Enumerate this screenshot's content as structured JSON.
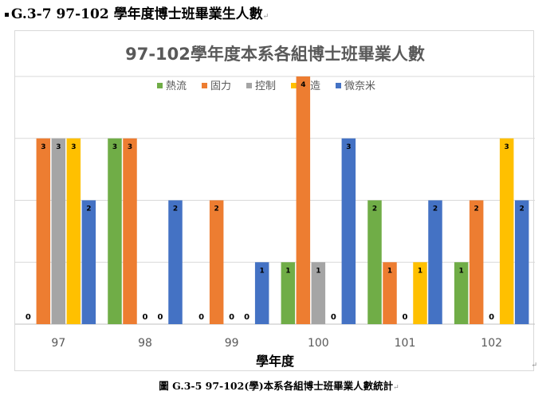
{
  "heading": {
    "text": "G.3-7  97-102 學年度博士班畢業生人數"
  },
  "caption": {
    "text": "圖 G.3-5  97-102(學)本系各組博士班畢業人數統計"
  },
  "para_mark": "↵",
  "chart_data": {
    "type": "bar",
    "title": "97-102學年度本系各組博士班畢業人數",
    "xlabel": "學年度",
    "ylabel": "",
    "ylim": [
      0,
      4
    ],
    "grid": true,
    "legend_position": "top",
    "categories": [
      "97",
      "98",
      "99",
      "100",
      "101",
      "102"
    ],
    "series": [
      {
        "name": "熱流",
        "color": "#70ad47",
        "values": [
          0,
          3,
          0,
          1,
          2,
          1
        ]
      },
      {
        "name": "固力",
        "color": "#ed7d31",
        "values": [
          3,
          3,
          2,
          4,
          1,
          2
        ]
      },
      {
        "name": "控制",
        "color": "#a5a5a5",
        "values": [
          3,
          0,
          0,
          1,
          0,
          0
        ]
      },
      {
        "name": "製造",
        "color": "#ffc000",
        "values": [
          3,
          0,
          0,
          0,
          1,
          3
        ]
      },
      {
        "name": "微奈米",
        "color": "#4472c4",
        "values": [
          2,
          2,
          1,
          3,
          2,
          2
        ]
      }
    ]
  }
}
